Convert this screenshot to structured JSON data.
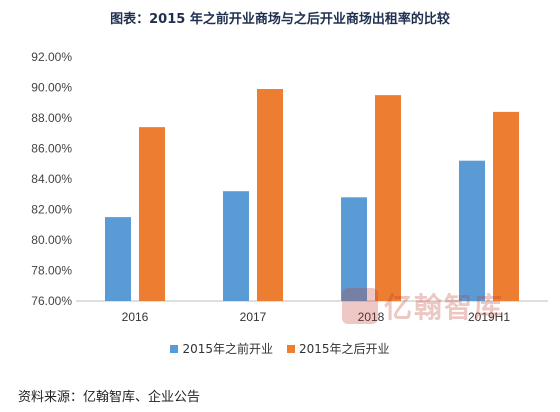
{
  "title": "图表：2015 年之前开业商场与之后开业商场出租率的比较",
  "source": "资料来源：亿翰智库、企业公告",
  "watermark": "亿翰智库",
  "colors": {
    "series1": "#5b9bd5",
    "series2": "#ed7d31",
    "axis": "#bfbfbf"
  },
  "chart_data": {
    "type": "bar",
    "categories": [
      "2016",
      "2017",
      "2018",
      "2019H1"
    ],
    "series": [
      {
        "name": "2015年之前开业",
        "values": [
          81.5,
          83.2,
          82.8,
          85.2
        ]
      },
      {
        "name": "2015年之后开业",
        "values": [
          87.4,
          89.9,
          89.5,
          88.4
        ]
      }
    ],
    "ylim": [
      76,
      92
    ],
    "yticks": [
      "76.00%",
      "78.00%",
      "80.00%",
      "82.00%",
      "84.00%",
      "86.00%",
      "88.00%",
      "90.00%",
      "92.00%"
    ],
    "ytick_values": [
      76,
      78,
      80,
      82,
      84,
      86,
      88,
      90,
      92
    ],
    "legend_position": "bottom",
    "grid": false
  }
}
